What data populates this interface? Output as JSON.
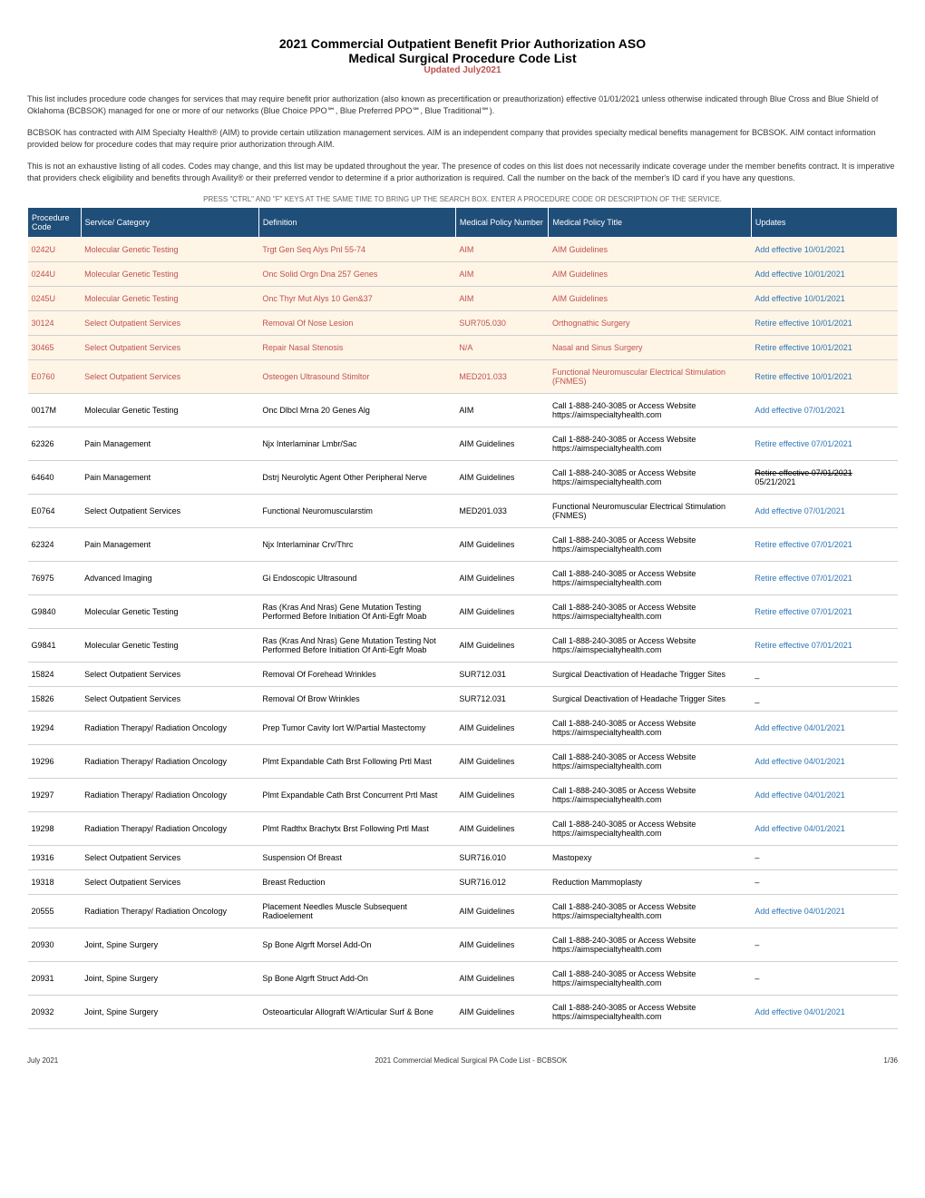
{
  "title": {
    "main": "2021 Commercial Outpatient Benefit Prior Authorization ASO",
    "sub": "Medical Surgical Procedure Code List",
    "updated": "Updated July2021"
  },
  "intro": {
    "para1": "This list includes procedure code changes for services that may require benefit prior authorization (also known as precertification or preauthorization) effective 01/01/2021 unless otherwise indicated through Blue Cross and Blue Shield of Oklahoma (BCBSOK) managed for one or more of our networks (Blue Choice PPO℠, Blue Preferred PPO℠, Blue Traditional℠).",
    "para2": "BCBSOK has contracted with AIM Specialty Health® (AIM) to provide certain utilization management services. AIM is an independent company that provides specialty medical benefits management for BCBSOK. AIM contact information provided below for procedure codes that may require prior authorization through AIM.",
    "para3": "This is not an exhaustive listing of all codes. Codes may change, and this list may be updated throughout the year. The presence of codes on this list does not necessarily indicate coverage under the member benefits contract. It is imperative that providers check eligibility and benefits through Availity® or their preferred vendor to determine if a prior authorization is required. Call the number on the back of the member's ID card if you have any questions.",
    "searchHint": "PRESS \"CTRL\" AND \"F\" KEYS AT THE SAME TIME TO BRING UP THE SEARCH BOX.  ENTER A PROCEDURE CODE OR DESCRIPTION OF THE SERVICE."
  },
  "columns": [
    "Procedure Code",
    "Service/ Category",
    "Definition",
    "Medical Policy Number",
    "Medical Policy Title",
    "Updates"
  ],
  "rows": [
    {
      "code": "0242U",
      "category": "Molecular Genetic Testing",
      "definition": "Trgt Gen Seq Alys Pnl 55-74",
      "policyNum": "AIM",
      "policyTitle": "AIM Guidelines",
      "update": "Add effective 10/01/2021",
      "highlight": true
    },
    {
      "code": "0244U",
      "category": "Molecular Genetic Testing",
      "definition": "Onc Solid Orgn Dna 257 Genes",
      "policyNum": "AIM",
      "policyTitle": "AIM Guidelines",
      "update": "Add effective 10/01/2021",
      "highlight": true
    },
    {
      "code": "0245U",
      "category": "Molecular Genetic Testing",
      "definition": "Onc Thyr Mut Alys 10 Gen&37",
      "policyNum": "AIM",
      "policyTitle": "AIM Guidelines",
      "update": "Add effective 10/01/2021",
      "highlight": true
    },
    {
      "code": "30124",
      "category": "Select Outpatient Services",
      "definition": "Removal Of Nose Lesion",
      "policyNum": "SUR705.030",
      "policyTitle": "Orthognathic Surgery",
      "update": "Retire effective 10/01/2021",
      "highlight": true
    },
    {
      "code": "30465",
      "category": "Select Outpatient Services",
      "definition": "Repair Nasal Stenosis",
      "policyNum": "N/A",
      "policyTitle": "Nasal and Sinus Surgery",
      "update": "Retire effective 10/01/2021",
      "highlight": true
    },
    {
      "code": "E0760",
      "category": "Select Outpatient Services",
      "definition": "Osteogen Ultrasound Stimltor",
      "policyNum": "MED201.033",
      "policyTitle": "Functional Neuromuscular Electrical Stimulation (FNMES)",
      "update": "Retire effective 10/01/2021",
      "highlight": true
    },
    {
      "code": "0017M",
      "category": "Molecular Genetic Testing",
      "definition": "Onc Dlbcl Mrna 20 Genes Alg",
      "policyNum": "AIM",
      "policyTitle": "Call 1-888-240-3085 or Access Website https://aimspecialtyhealth.com",
      "update": "Add effective 07/01/2021",
      "highlight": false
    },
    {
      "code": "62326",
      "category": "Pain Management",
      "definition": "Njx Interlaminar Lmbr/Sac",
      "policyNum": "AIM Guidelines",
      "policyTitle": "Call 1-888-240-3085 or Access Website https://aimspecialtyhealth.com",
      "update": "Retire effective 07/01/2021",
      "highlight": false
    },
    {
      "code": "64640",
      "category": "Pain Management",
      "definition": "Dstrj Neurolytic Agent Other Peripheral Nerve",
      "policyNum": "AIM Guidelines",
      "policyTitle": "Call 1-888-240-3085 or Access Website https://aimspecialtyhealth.com",
      "update": "Retire effective 07/01/2021 05/21/2021",
      "highlight": false,
      "strikeUpdate": true
    },
    {
      "code": "E0764",
      "category": "Select Outpatient Services",
      "definition": "Functional Neuromuscularstim",
      "policyNum": "MED201.033",
      "policyTitle": "Functional Neuromuscular Electrical Stimulation (FNMES)",
      "update": "Add effective 07/01/2021",
      "highlight": false
    },
    {
      "code": "62324",
      "category": "Pain Management",
      "definition": "Njx Interlaminar Crv/Thrc",
      "policyNum": "AIM Guidelines",
      "policyTitle": "Call 1-888-240-3085 or Access Website https://aimspecialtyhealth.com",
      "update": "Retire effective 07/01/2021",
      "highlight": false
    },
    {
      "code": "76975",
      "category": "Advanced Imaging",
      "definition": "Gi Endoscopic Ultrasound",
      "policyNum": "AIM Guidelines",
      "policyTitle": "Call 1-888-240-3085 or Access Website https://aimspecialtyhealth.com",
      "update": "Retire effective 07/01/2021",
      "highlight": false
    },
    {
      "code": "G9840",
      "category": "Molecular Genetic Testing",
      "definition": "Ras (Kras And Nras) Gene Mutation Testing Performed Before Initiation Of Anti-Egfr Moab",
      "policyNum": "AIM Guidelines",
      "policyTitle": "Call 1-888-240-3085 or Access Website https://aimspecialtyhealth.com",
      "update": "Retire effective 07/01/2021",
      "highlight": false
    },
    {
      "code": "G9841",
      "category": "Molecular Genetic Testing",
      "definition": "Ras (Kras And Nras) Gene Mutation Testing Not Performed Before Initiation Of Anti-Egfr Moab",
      "policyNum": "AIM Guidelines",
      "policyTitle": "Call 1-888-240-3085 or Access Website https://aimspecialtyhealth.com",
      "update": "Retire effective 07/01/2021",
      "highlight": false
    },
    {
      "code": "15824",
      "category": "Select Outpatient Services",
      "definition": "Removal Of Forehead Wrinkles",
      "policyNum": "SUR712.031",
      "policyTitle": "Surgical Deactivation of Headache Trigger Sites",
      "update": "_",
      "highlight": false
    },
    {
      "code": "15826",
      "category": "Select Outpatient Services",
      "definition": "Removal Of Brow Wrinkles",
      "policyNum": "SUR712.031",
      "policyTitle": "Surgical Deactivation of Headache Trigger Sites",
      "update": "_",
      "highlight": false
    },
    {
      "code": "19294",
      "category": "Radiation Therapy/ Radiation Oncology",
      "definition": "Prep Tumor Cavity Iort W/Partial Mastectomy",
      "policyNum": "AIM Guidelines",
      "policyTitle": "Call 1-888-240-3085 or Access Website https://aimspecialtyhealth.com",
      "update": "Add effective 04/01/2021",
      "highlight": false
    },
    {
      "code": "19296",
      "category": "Radiation Therapy/ Radiation Oncology",
      "definition": "Plmt Expandable Cath Brst Following Prtl Mast",
      "policyNum": "AIM Guidelines",
      "policyTitle": "Call 1-888-240-3085 or Access Website https://aimspecialtyhealth.com",
      "update": "Add effective 04/01/2021",
      "highlight": false
    },
    {
      "code": "19297",
      "category": "Radiation Therapy/ Radiation Oncology",
      "definition": "Plmt Expandable Cath Brst Concurrent Prtl Mast",
      "policyNum": "AIM Guidelines",
      "policyTitle": "Call 1-888-240-3085 or Access Website https://aimspecialtyhealth.com",
      "update": "Add effective 04/01/2021",
      "highlight": false
    },
    {
      "code": "19298",
      "category": "Radiation Therapy/ Radiation Oncology",
      "definition": "Plmt Radthx Brachytx Brst Following Prtl Mast",
      "policyNum": "AIM Guidelines",
      "policyTitle": "Call 1-888-240-3085 or Access Website https://aimspecialtyhealth.com",
      "update": "Add effective 04/01/2021",
      "highlight": false
    },
    {
      "code": "19316",
      "category": "Select Outpatient Services",
      "definition": "Suspension Of Breast",
      "policyNum": "SUR716.010",
      "policyTitle": "Mastopexy",
      "update": "–",
      "highlight": false
    },
    {
      "code": "19318",
      "category": "Select Outpatient Services",
      "definition": "Breast Reduction",
      "policyNum": "SUR716.012",
      "policyTitle": "Reduction Mammoplasty",
      "update": "–",
      "highlight": false
    },
    {
      "code": "20555",
      "category": "Radiation Therapy/ Radiation Oncology",
      "definition": "Placement Needles Muscle Subsequent Radioelement",
      "policyNum": "AIM Guidelines",
      "policyTitle": "Call 1-888-240-3085 or Access Website https://aimspecialtyhealth.com",
      "update": "Add effective 04/01/2021",
      "highlight": false
    },
    {
      "code": "20930",
      "category": "Joint, Spine Surgery",
      "definition": "Sp Bone Algrft Morsel Add-On",
      "policyNum": "AIM Guidelines",
      "policyTitle": "Call 1-888-240-3085 or Access Website https://aimspecialtyhealth.com",
      "update": "–",
      "highlight": false
    },
    {
      "code": "20931",
      "category": "Joint, Spine Surgery",
      "definition": "Sp Bone Algrft Struct Add-On",
      "policyNum": "AIM Guidelines",
      "policyTitle": "Call 1-888-240-3085 or Access Website https://aimspecialtyhealth.com",
      "update": "–",
      "highlight": false
    },
    {
      "code": "20932",
      "category": "Joint, Spine Surgery",
      "definition": "Osteoarticular Allograft W/Articular Surf & Bone",
      "policyNum": "AIM Guidelines",
      "policyTitle": "Call 1-888-240-3085 or Access Website https://aimspecialtyhealth.com",
      "update": "Add effective 04/01/2021",
      "highlight": false
    }
  ],
  "footer": {
    "left": "July 2021",
    "center": "2021 Commercial Medical Surgical PA Code List - BCBSOK",
    "right": "1/36"
  },
  "colors": {
    "headerBg": "#1f4e79",
    "headerText": "#ffffff",
    "highlightBg": "#fef5e7",
    "highlightText": "#c0504d",
    "linkColor": "#2e75b6",
    "updateRed": "#c0504d"
  }
}
